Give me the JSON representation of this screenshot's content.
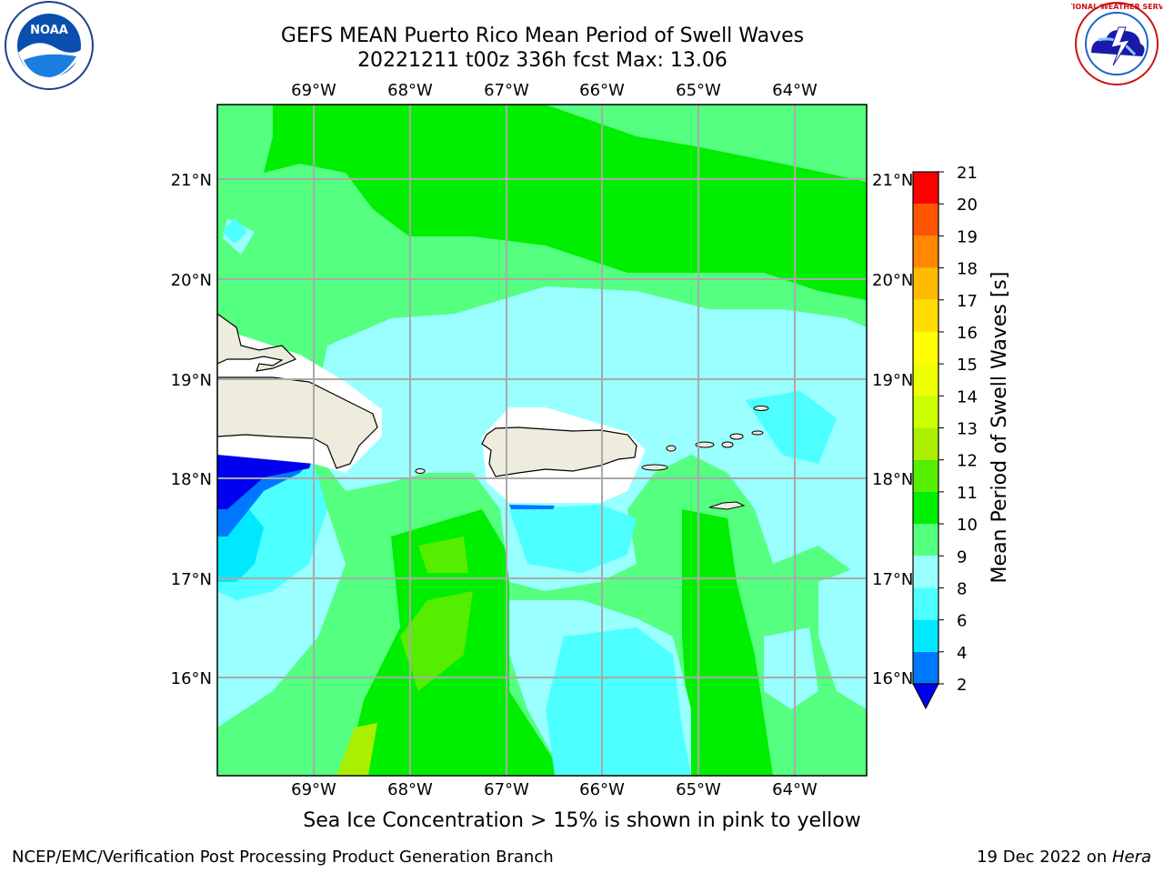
{
  "title": {
    "line1": "GEFS MEAN Puerto Rico Mean Period of Swell Waves",
    "line2": "20221211 t00z 336h fcst   Max: 13.06"
  },
  "note": "Sea Ice Concentration > 15% is shown in pink to yellow",
  "footer": {
    "left": "NCEP/EMC/Verification Post Processing Product Generation Branch",
    "right_date": "19 Dec 2022 on ",
    "right_host": "Hera"
  },
  "logos": {
    "noaa": "NOAA",
    "nws": "NATIONAL WEATHER SERVICE"
  },
  "map": {
    "lon_labels": [
      "69°W",
      "68°W",
      "67°W",
      "66°W",
      "65°W",
      "64°W"
    ],
    "lat_labels": [
      "21°N",
      "20°N",
      "19°N",
      "18°N",
      "17°N",
      "16°N"
    ],
    "land_color": "#eeecdc",
    "ocean_color": "#55ff80"
  },
  "colorbar": {
    "label": "Mean Period of Swell Waves [s]",
    "ticks": [
      "2",
      "4",
      "6",
      "8",
      "9",
      "10",
      "11",
      "12",
      "13",
      "14",
      "15",
      "16",
      "17",
      "18",
      "19",
      "20",
      "21"
    ],
    "colors": [
      "#0077ff",
      "#00e8ff",
      "#4dffff",
      "#99ffff",
      "#55ff80",
      "#00ee00",
      "#55ee00",
      "#aaee00",
      "#ccff00",
      "#eeff00",
      "#ffff00",
      "#ffdd00",
      "#ffbb00",
      "#ff8800",
      "#ff5500",
      "#ff0000"
    ],
    "under_color": "#0000ee"
  }
}
